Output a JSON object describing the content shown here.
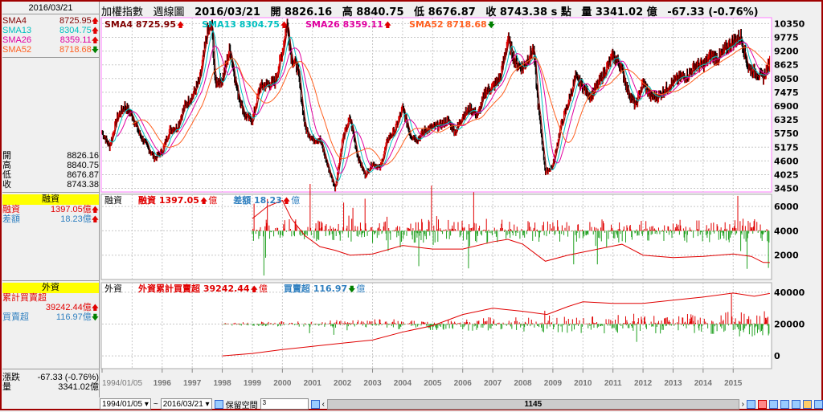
{
  "left_panel": {
    "date": "2016/03/21",
    "sma": [
      {
        "label": "SMA4",
        "value": "8725.95",
        "dir": "up",
        "color": "#800000"
      },
      {
        "label": "SMA13",
        "value": "8304.75",
        "dir": "up",
        "color": "#00c0c0"
      },
      {
        "label": "SMA26",
        "value": "8359.11",
        "dir": "up",
        "color": "#e000a0"
      },
      {
        "label": "SMA52",
        "value": "8718.68",
        "dir": "down",
        "color": "#ff6020"
      }
    ],
    "ohlc": [
      {
        "label": "開",
        "value": "8826.16"
      },
      {
        "label": "高",
        "value": "8840.75"
      },
      {
        "label": "低",
        "value": "8676.87"
      },
      {
        "label": "收",
        "value": "8743.38"
      }
    ],
    "margin": {
      "title": "融資",
      "rows": [
        {
          "label": "融資",
          "value": "1397.05億",
          "dir": "up"
        },
        {
          "label": "差額",
          "value": "18.23億",
          "dir": "up"
        }
      ]
    },
    "foreign": {
      "title": "外資",
      "rows": [
        {
          "label": "累計買賣超",
          "value": "39242.44億",
          "dir": "up"
        },
        {
          "label": "買賣超",
          "value": "116.97億",
          "dir": "down"
        }
      ]
    },
    "change": {
      "label": "漲跌",
      "value": "-67.33 (-0.76%)"
    },
    "volume": {
      "label": "量",
      "value": "3341.02億"
    }
  },
  "header": {
    "name": "加權指數",
    "period": "週線圖",
    "date": "2016/03/21",
    "open": "開 8826.16",
    "high": "高 8840.75",
    "low": "低 8676.87",
    "close": "收 8743.38 s 點",
    "volume": "量 3341.02 億",
    "change": "-67.33 (-0.76%)"
  },
  "legends": {
    "price": [
      "SMA4 8725.95",
      "SMA13 8304.75",
      "SMA26 8359.11",
      "SMA52 8718.68"
    ],
    "margin": [
      "融資",
      "融資 1397.05",
      "億",
      "差額 18.23",
      "億"
    ],
    "foreign": [
      "外資",
      "外資累計買賣超 39242.44",
      "億",
      "買賣超 116.97",
      "億"
    ]
  },
  "bottom": {
    "start": "1994/01/05",
    "tilde": "~",
    "end": "2016/03/21",
    "reserve_label": "保留空間",
    "reserve_value": "3",
    "scroll_value": "1145"
  },
  "colors": {
    "up": "#e00000",
    "down": "#008000",
    "frame": "#ff80ff",
    "grid": "#c8c8c8"
  },
  "chart_data": [
    {
      "type": "line",
      "title": "加權指數 週線圖",
      "yticks": [
        3450,
        4025,
        4600,
        5175,
        5750,
        6325,
        6900,
        7475,
        8050,
        8625,
        9200,
        9775,
        10350
      ],
      "ylim": [
        3300,
        10600
      ],
      "xtick_labels": [
        "1994/01/05",
        "1996",
        "1997",
        "1998",
        "1999",
        "2000",
        "2001",
        "2002",
        "2003",
        "2004",
        "2005",
        "2006",
        "2007",
        "2008",
        "2009",
        "2010",
        "2011",
        "2012",
        "2013",
        "2014",
        "2015"
      ],
      "x": [
        1994.0,
        1994.25,
        1994.5,
        1994.75,
        1995.0,
        1995.25,
        1995.5,
        1995.75,
        1996.0,
        1996.25,
        1996.5,
        1996.75,
        1997.0,
        1997.25,
        1997.5,
        1997.65,
        1997.75,
        1998.0,
        1998.25,
        1998.5,
        1998.75,
        1999.0,
        1999.25,
        1999.5,
        1999.75,
        2000.0,
        2000.15,
        2000.3,
        2000.5,
        2000.75,
        2001.0,
        2001.25,
        2001.5,
        2001.75,
        2002.0,
        2002.25,
        2002.5,
        2002.75,
        2003.0,
        2003.25,
        2003.5,
        2003.75,
        2004.0,
        2004.25,
        2004.5,
        2004.75,
        2005.0,
        2005.25,
        2005.5,
        2005.75,
        2006.0,
        2006.25,
        2006.5,
        2006.75,
        2007.0,
        2007.25,
        2007.5,
        2007.75,
        2008.0,
        2008.35,
        2008.5,
        2008.75,
        2009.0,
        2009.25,
        2009.5,
        2009.75,
        2010.0,
        2010.25,
        2010.5,
        2010.75,
        2011.0,
        2011.25,
        2011.5,
        2011.75,
        2012.0,
        2012.25,
        2012.5,
        2012.75,
        2013.0,
        2013.25,
        2013.5,
        2013.75,
        2014.0,
        2014.25,
        2014.5,
        2014.75,
        2015.0,
        2015.25,
        2015.5,
        2015.75,
        2016.0,
        2016.22
      ],
      "close": [
        5800,
        5200,
        6400,
        6900,
        6500,
        5700,
        5200,
        4700,
        5000,
        5900,
        6000,
        6900,
        7300,
        8000,
        10000,
        10256,
        7900,
        8000,
        9300,
        7500,
        6500,
        6300,
        7700,
        7800,
        7900,
        9200,
        10393,
        8900,
        8500,
        6000,
        5500,
        5500,
        4400,
        3450,
        5500,
        6400,
        4800,
        4000,
        4500,
        4300,
        5500,
        5900,
        6800,
        5700,
        5500,
        5900,
        6000,
        6100,
        6300,
        5800,
        6500,
        6800,
        6500,
        7500,
        7700,
        8100,
        9700,
        8700,
        8500,
        9300,
        7000,
        4100,
        4400,
        6000,
        7000,
        8100,
        7700,
        7300,
        7800,
        8400,
        9000,
        8600,
        7500,
        6900,
        7900,
        7300,
        7300,
        7600,
        7900,
        8100,
        8200,
        8600,
        8600,
        9000,
        8900,
        9300,
        9600,
        9800,
        8500,
        8300,
        8100,
        8743
      ],
      "series": [
        {
          "name": "SMA4",
          "color": "#800000"
        },
        {
          "name": "SMA13",
          "color": "#00c0c0"
        },
        {
          "name": "SMA26",
          "color": "#e000a0"
        },
        {
          "name": "SMA52",
          "color": "#ff6020"
        }
      ]
    },
    {
      "type": "line",
      "title": "融資",
      "yticks": [
        2000,
        4000,
        6000
      ],
      "ylim": [
        0,
        7000
      ],
      "x": [
        1999.0,
        1999.5,
        2000.0,
        2000.3,
        2000.75,
        2001.25,
        2001.75,
        2002.25,
        2003.0,
        2004.0,
        2005.0,
        2006.0,
        2007.0,
        2007.5,
        2008.0,
        2008.75,
        2009.5,
        2010.5,
        2011.3,
        2012.0,
        2013.0,
        2014.0,
        2015.0,
        2015.6,
        2016.0,
        2016.22
      ],
      "values": [
        5000,
        6000,
        6500,
        5000,
        3600,
        2700,
        2400,
        2000,
        2100,
        2800,
        2500,
        2500,
        3100,
        3300,
        2900,
        1500,
        2000,
        2500,
        2900,
        2000,
        1800,
        1900,
        2100,
        1900,
        1400,
        1397
      ]
    },
    {
      "type": "line",
      "title": "外資累計買賣超",
      "yticks": [
        0,
        20000,
        40000
      ],
      "ylim": [
        -8000,
        46000
      ],
      "x": [
        1998.0,
        1999.0,
        2000.0,
        2001.0,
        2002.0,
        2003.0,
        2004.0,
        2005.0,
        2006.0,
        2007.0,
        2008.0,
        2008.8,
        2009.5,
        2010.0,
        2011.0,
        2012.0,
        2013.0,
        2014.0,
        2015.0,
        2015.7,
        2016.22
      ],
      "values": [
        0,
        1500,
        4000,
        6000,
        8000,
        10000,
        15000,
        19000,
        26000,
        30000,
        28000,
        26000,
        31000,
        34000,
        33000,
        33000,
        35000,
        37000,
        39500,
        37500,
        39242
      ]
    }
  ]
}
